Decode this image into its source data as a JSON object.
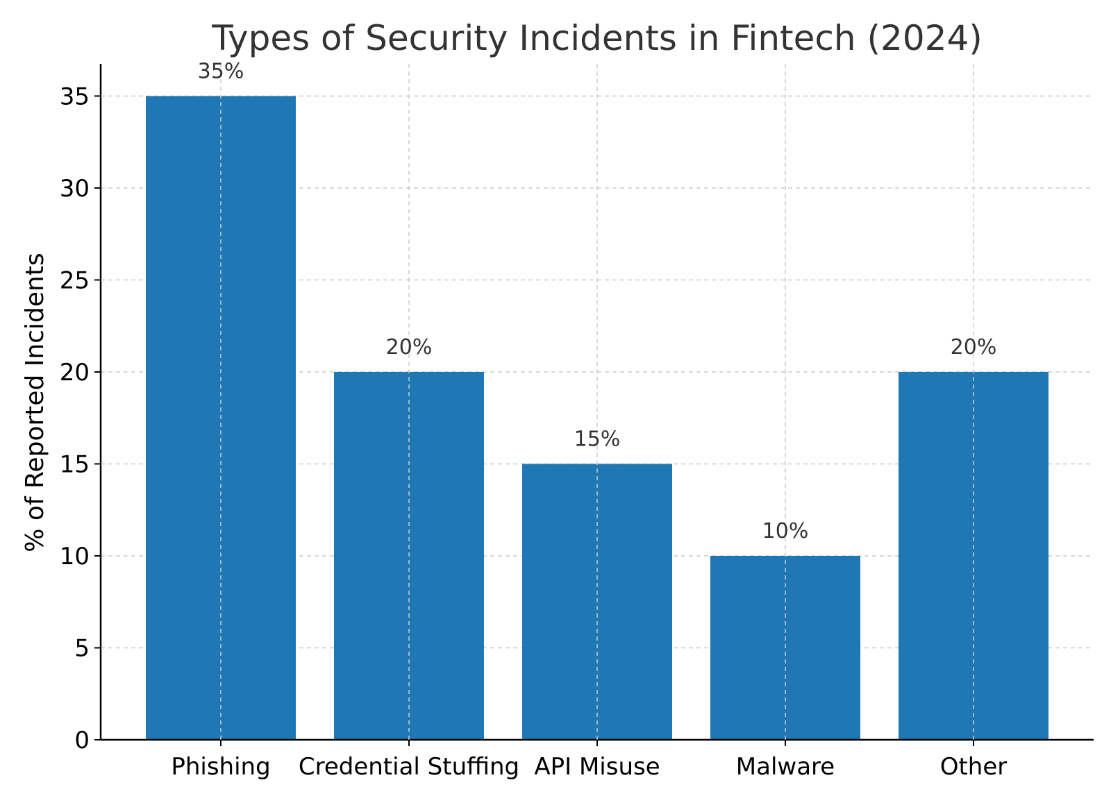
{
  "chart_data": {
    "type": "bar",
    "title": "Types of Security Incidents in Fintech (2024)",
    "xlabel": "",
    "ylabel": "% of Reported Incidents",
    "categories": [
      "Phishing",
      "Credential Stuffing",
      "API Misuse",
      "Malware",
      "Other"
    ],
    "values": [
      35,
      20,
      15,
      10,
      20
    ],
    "data_labels": [
      "35%",
      "20%",
      "15%",
      "10%",
      "20%"
    ],
    "ylim": [
      0,
      36.75
    ],
    "yticks": [
      0,
      5,
      10,
      15,
      20,
      25,
      30,
      35
    ],
    "ytick_labels": [
      "0",
      "5",
      "10",
      "15",
      "20",
      "25",
      "30",
      "35"
    ],
    "grid": true,
    "colors": {
      "bar": "#1f77b4",
      "grid": "#cccccc",
      "axis": "#000000",
      "text": "#333333"
    }
  }
}
